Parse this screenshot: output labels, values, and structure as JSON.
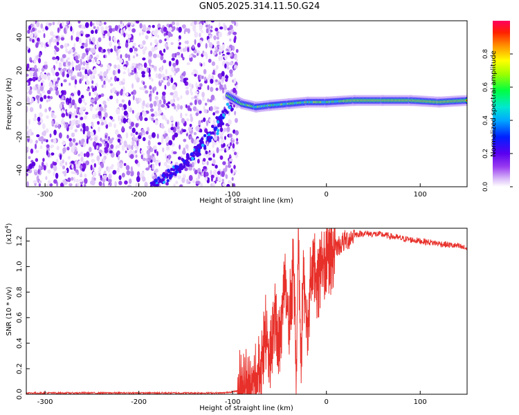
{
  "figure": {
    "title": "GN05.2025.314.11.50.G24"
  },
  "chart_data": [
    {
      "type": "heatmap",
      "title": "GN05.2025.314.11.50.G24",
      "xlabel": "Height of straight line (km)",
      "ylabel": "Frequency (Hz)",
      "xlim": [
        -320,
        150
      ],
      "ylim": [
        -50,
        50
      ],
      "xticks": [
        -300,
        -200,
        -100,
        0,
        100
      ],
      "yticks": [
        -40,
        -20,
        0,
        20,
        40
      ],
      "colorbar": {
        "label": "Normalized spectral amplitude",
        "range": [
          0,
          1
        ],
        "ticks": [
          "0.0",
          "0.2",
          "0.4",
          "0.6",
          "0.8"
        ],
        "colormap": [
          "#ffffff",
          "#b57cf0",
          "#7a00e6",
          "#1e00ff",
          "#0050ff",
          "#00b0ff",
          "#00e8d0",
          "#00ff60",
          "#80ff00",
          "#ffff00",
          "#ffb000",
          "#ff3000",
          "#ff0060"
        ]
      },
      "features": {
        "noise_region_x": [
          -320,
          -95
        ],
        "diagonal_track": [
          [
            -185,
            -50
          ],
          [
            -160,
            -40
          ],
          [
            -140,
            -30
          ],
          [
            -120,
            -16
          ],
          [
            -100,
            2
          ]
        ],
        "bright_track": [
          [
            -105,
            5
          ],
          [
            -90,
            0
          ],
          [
            -75,
            -2
          ],
          [
            -60,
            -1
          ],
          [
            -40,
            0
          ],
          [
            -20,
            1
          ],
          [
            0,
            1
          ],
          [
            30,
            2
          ],
          [
            60,
            2
          ],
          [
            90,
            2
          ],
          [
            120,
            1
          ],
          [
            150,
            2
          ]
        ]
      }
    },
    {
      "type": "line",
      "xlabel": "Height of straight line (km)",
      "ylabel": "SNR (10 * v/v)",
      "exponent_label": "(x10",
      "exponent_power": "4",
      "exponent_close": ")",
      "xlim": [
        -320,
        150
      ],
      "ylim": [
        0,
        1.3
      ],
      "xticks": [
        -300,
        -200,
        -100,
        0,
        100
      ],
      "yticks": [
        "0.0",
        "0.2",
        "0.4",
        "0.6",
        "0.8",
        "1.0",
        "1.2"
      ],
      "color": "#e8302a",
      "series": [
        {
          "x": [
            -320,
            -250,
            -200,
            -150,
            -110,
            -90,
            -80,
            -70,
            -65,
            -60,
            -55,
            -50,
            -45,
            -40,
            -35,
            -32,
            -30,
            -27,
            -25,
            -20,
            -15,
            -10,
            -5,
            0,
            10,
            20,
            30,
            40,
            60,
            80,
            100,
            120,
            140,
            150
          ],
          "y": [
            0.01,
            0.01,
            0.01,
            0.01,
            0.01,
            0.03,
            0.08,
            0.18,
            0.5,
            0.25,
            0.65,
            0.35,
            0.9,
            0.55,
            1.0,
            0.2,
            1.25,
            0.15,
            0.95,
            0.5,
            1.1,
            0.85,
            1.0,
            1.05,
            1.15,
            1.2,
            1.25,
            1.26,
            1.25,
            1.22,
            1.2,
            1.18,
            1.16,
            1.14
          ]
        }
      ]
    }
  ]
}
